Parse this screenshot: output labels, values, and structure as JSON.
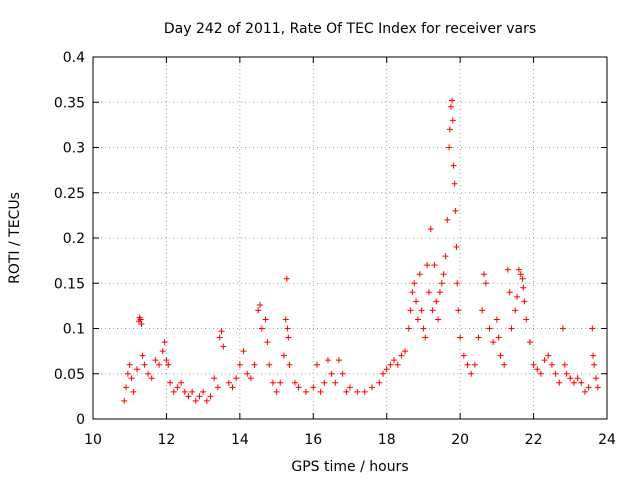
{
  "chart_data": {
    "type": "scatter",
    "title": "Day 242 of 2011, Rate Of TEC Index for receiver vars",
    "xlabel": "GPS time / hours",
    "ylabel": "ROTI / TECUs",
    "xlim": [
      10,
      24
    ],
    "ylim": [
      0,
      0.4
    ],
    "x_ticks": [
      "10",
      "12",
      "14",
      "16",
      "18",
      "20",
      "22",
      "24"
    ],
    "y_ticks": [
      "0",
      "0.05",
      "0.1",
      "0.15",
      "0.2",
      "0.25",
      "0.3",
      "0.35",
      "0.4"
    ],
    "grid": true,
    "marker": "+",
    "color": "#ff0000",
    "series": [
      {
        "name": "ROTI",
        "points": [
          [
            10.85,
            0.02
          ],
          [
            10.9,
            0.035
          ],
          [
            10.95,
            0.05
          ],
          [
            11.0,
            0.06
          ],
          [
            11.05,
            0.045
          ],
          [
            11.1,
            0.03
          ],
          [
            11.2,
            0.055
          ],
          [
            11.25,
            0.108
          ],
          [
            11.27,
            0.112
          ],
          [
            11.3,
            0.11
          ],
          [
            11.32,
            0.105
          ],
          [
            11.35,
            0.07
          ],
          [
            11.4,
            0.06
          ],
          [
            11.5,
            0.05
          ],
          [
            11.6,
            0.045
          ],
          [
            11.7,
            0.065
          ],
          [
            11.8,
            0.06
          ],
          [
            11.9,
            0.075
          ],
          [
            11.95,
            0.085
          ],
          [
            12.0,
            0.065
          ],
          [
            12.05,
            0.06
          ],
          [
            12.1,
            0.04
          ],
          [
            12.2,
            0.03
          ],
          [
            12.3,
            0.035
          ],
          [
            12.4,
            0.04
          ],
          [
            12.5,
            0.03
          ],
          [
            12.6,
            0.025
          ],
          [
            12.7,
            0.03
          ],
          [
            12.8,
            0.02
          ],
          [
            12.9,
            0.025
          ],
          [
            13.0,
            0.03
          ],
          [
            13.1,
            0.02
          ],
          [
            13.2,
            0.025
          ],
          [
            13.3,
            0.045
          ],
          [
            13.4,
            0.035
          ],
          [
            13.45,
            0.09
          ],
          [
            13.5,
            0.097
          ],
          [
            13.55,
            0.08
          ],
          [
            13.7,
            0.04
          ],
          [
            13.8,
            0.035
          ],
          [
            13.9,
            0.045
          ],
          [
            14.0,
            0.06
          ],
          [
            14.1,
            0.075
          ],
          [
            14.2,
            0.05
          ],
          [
            14.3,
            0.045
          ],
          [
            14.4,
            0.06
          ],
          [
            14.5,
            0.12
          ],
          [
            14.55,
            0.126
          ],
          [
            14.6,
            0.1
          ],
          [
            14.7,
            0.11
          ],
          [
            14.75,
            0.085
          ],
          [
            14.8,
            0.06
          ],
          [
            14.9,
            0.04
          ],
          [
            15.0,
            0.03
          ],
          [
            15.1,
            0.04
          ],
          [
            15.2,
            0.07
          ],
          [
            15.25,
            0.11
          ],
          [
            15.28,
            0.155
          ],
          [
            15.3,
            0.1
          ],
          [
            15.32,
            0.09
          ],
          [
            15.35,
            0.06
          ],
          [
            15.5,
            0.04
          ],
          [
            15.6,
            0.035
          ],
          [
            15.8,
            0.03
          ],
          [
            16.0,
            0.035
          ],
          [
            16.1,
            0.06
          ],
          [
            16.2,
            0.03
          ],
          [
            16.3,
            0.04
          ],
          [
            16.4,
            0.065
          ],
          [
            16.5,
            0.05
          ],
          [
            16.6,
            0.04
          ],
          [
            16.7,
            0.065
          ],
          [
            16.8,
            0.05
          ],
          [
            16.9,
            0.03
          ],
          [
            17.0,
            0.035
          ],
          [
            17.2,
            0.03
          ],
          [
            17.4,
            0.03
          ],
          [
            17.6,
            0.035
          ],
          [
            17.8,
            0.04
          ],
          [
            17.9,
            0.05
          ],
          [
            18.0,
            0.055
          ],
          [
            18.1,
            0.06
          ],
          [
            18.2,
            0.065
          ],
          [
            18.3,
            0.06
          ],
          [
            18.4,
            0.07
          ],
          [
            18.5,
            0.075
          ],
          [
            18.6,
            0.1
          ],
          [
            18.65,
            0.12
          ],
          [
            18.7,
            0.14
          ],
          [
            18.75,
            0.15
          ],
          [
            18.8,
            0.13
          ],
          [
            18.85,
            0.11
          ],
          [
            18.9,
            0.16
          ],
          [
            18.95,
            0.12
          ],
          [
            19.0,
            0.1
          ],
          [
            19.05,
            0.09
          ],
          [
            19.1,
            0.17
          ],
          [
            19.15,
            0.14
          ],
          [
            19.2,
            0.21
          ],
          [
            19.25,
            0.12
          ],
          [
            19.3,
            0.17
          ],
          [
            19.35,
            0.13
          ],
          [
            19.4,
            0.11
          ],
          [
            19.45,
            0.14
          ],
          [
            19.5,
            0.15
          ],
          [
            19.55,
            0.16
          ],
          [
            19.6,
            0.18
          ],
          [
            19.65,
            0.22
          ],
          [
            19.7,
            0.3
          ],
          [
            19.72,
            0.32
          ],
          [
            19.75,
            0.345
          ],
          [
            19.78,
            0.352
          ],
          [
            19.8,
            0.33
          ],
          [
            19.82,
            0.28
          ],
          [
            19.85,
            0.26
          ],
          [
            19.87,
            0.23
          ],
          [
            19.9,
            0.19
          ],
          [
            19.92,
            0.15
          ],
          [
            19.95,
            0.12
          ],
          [
            20.0,
            0.09
          ],
          [
            20.1,
            0.07
          ],
          [
            20.2,
            0.06
          ],
          [
            20.3,
            0.05
          ],
          [
            20.4,
            0.06
          ],
          [
            20.5,
            0.09
          ],
          [
            20.6,
            0.12
          ],
          [
            20.65,
            0.16
          ],
          [
            20.7,
            0.15
          ],
          [
            20.8,
            0.1
          ],
          [
            20.9,
            0.085
          ],
          [
            21.0,
            0.11
          ],
          [
            21.05,
            0.09
          ],
          [
            21.1,
            0.07
          ],
          [
            21.2,
            0.06
          ],
          [
            21.3,
            0.165
          ],
          [
            21.35,
            0.14
          ],
          [
            21.4,
            0.1
          ],
          [
            21.5,
            0.12
          ],
          [
            21.55,
            0.135
          ],
          [
            21.6,
            0.165
          ],
          [
            21.65,
            0.16
          ],
          [
            21.7,
            0.155
          ],
          [
            21.72,
            0.145
          ],
          [
            21.75,
            0.13
          ],
          [
            21.8,
            0.11
          ],
          [
            21.9,
            0.085
          ],
          [
            22.0,
            0.06
          ],
          [
            22.1,
            0.055
          ],
          [
            22.2,
            0.05
          ],
          [
            22.3,
            0.065
          ],
          [
            22.4,
            0.07
          ],
          [
            22.5,
            0.06
          ],
          [
            22.6,
            0.05
          ],
          [
            22.7,
            0.04
          ],
          [
            22.8,
            0.1
          ],
          [
            22.85,
            0.06
          ],
          [
            22.9,
            0.05
          ],
          [
            23.0,
            0.045
          ],
          [
            23.1,
            0.04
          ],
          [
            23.2,
            0.045
          ],
          [
            23.3,
            0.04
          ],
          [
            23.4,
            0.03
          ],
          [
            23.5,
            0.035
          ],
          [
            23.6,
            0.1
          ],
          [
            23.62,
            0.07
          ],
          [
            23.65,
            0.06
          ],
          [
            23.7,
            0.045
          ],
          [
            23.75,
            0.035
          ]
        ]
      }
    ]
  }
}
